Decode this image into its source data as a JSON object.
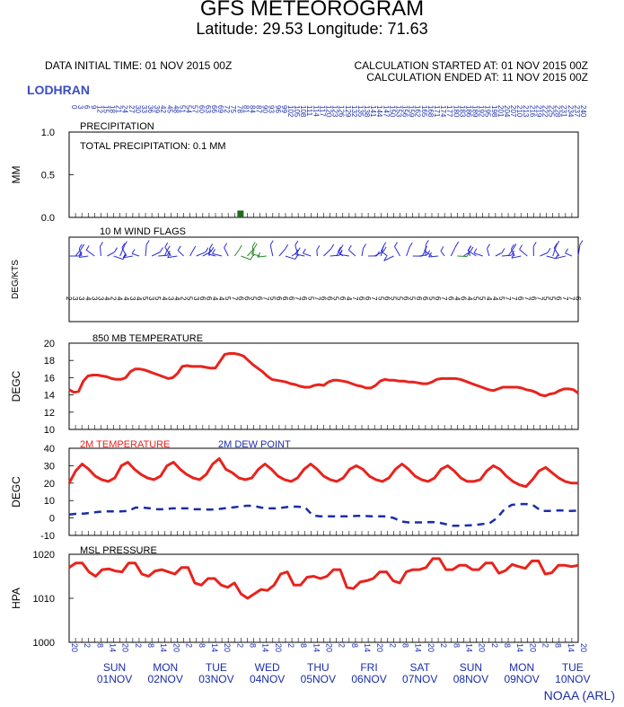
{
  "header": {
    "title": "GFS METEOROGRAM",
    "subtitle": "Latitude: 29.53 Longitude:  71.63",
    "data_initial_time": "DATA INITIAL TIME: 01 NOV 2015 00Z",
    "calc_started": "CALCULATION STARTED AT: 01 NOV 2015 00Z",
    "calc_ended": "CALCULATION ENDED AT: 11 NOV 2015 00Z",
    "site": "LODHRAN",
    "credit": "NOAA (ARL)"
  },
  "colors": {
    "temp": "#e8231d",
    "dew": "#1a2ea8",
    "precip": "#1f6b1f",
    "wind": "#2b2bd6",
    "wind_alt": "#2a8a2a"
  },
  "chart_data": [
    {
      "type": "bar",
      "title": "PRECIPITATION",
      "annotation": "TOTAL PRECIPITATION:   0.1 MM",
      "ylabel": "MM",
      "ylim": [
        0,
        1
      ],
      "yticks": [
        "0.0",
        "0.5",
        "1.0"
      ],
      "bars": [
        {
          "hour": 81,
          "value": 0.08
        }
      ]
    },
    {
      "type": "scatter",
      "title": "10 M  WIND FLAGS",
      "ylabel": "DEG/KTS",
      "speed_kts": [
        2,
        3,
        3,
        4,
        3,
        3,
        4,
        2,
        4,
        4,
        3,
        4,
        5,
        3,
        5,
        4,
        3,
        4,
        2,
        5,
        3,
        6,
        6,
        4,
        4,
        5,
        7,
        6,
        6,
        5,
        6,
        7,
        5,
        6,
        6,
        6,
        7,
        6,
        5,
        7,
        6,
        6,
        5,
        6,
        4,
        7,
        6,
        6,
        7,
        5,
        6,
        5,
        5,
        6,
        5,
        6,
        6,
        5,
        6,
        7,
        6,
        4,
        6,
        4,
        5,
        5,
        4,
        4,
        5,
        7,
        7,
        6,
        7,
        6,
        7,
        5,
        5,
        6,
        7,
        7,
        6
      ]
    },
    {
      "type": "line",
      "title": "850 MB  TEMPERATURE",
      "ylabel": "DEGC",
      "ylim": [
        10,
        20
      ],
      "yticks": [
        "10",
        "12",
        "14",
        "16",
        "18",
        "20"
      ],
      "x_hours_step": 3,
      "series": [
        {
          "values": [
            14.6,
            14.3,
            14.4,
            15.6,
            16.2,
            16.3,
            16.3,
            16.2,
            16.1,
            15.9,
            15.8,
            15.8,
            16.0,
            16.7,
            17.0,
            17.0,
            16.9,
            16.7,
            16.5,
            16.3,
            16.1,
            15.9,
            16.0,
            16.5,
            17.3,
            17.4,
            17.3,
            17.3,
            17.3,
            17.2,
            17.1,
            17.1,
            17.9,
            18.7,
            18.8,
            18.8,
            18.7,
            18.5,
            18.0,
            17.5,
            17.1,
            16.7,
            16.2,
            15.8,
            15.7,
            15.6,
            15.5,
            15.3,
            15.2,
            15.0,
            14.9,
            14.9,
            15.1,
            15.2,
            15.1,
            15.5,
            15.7,
            15.7,
            15.6,
            15.5,
            15.3,
            15.1,
            15.0,
            14.8,
            14.8,
            15.1,
            15.6,
            15.8,
            15.7,
            15.7,
            15.6,
            15.6,
            15.5,
            15.5,
            15.4,
            15.3,
            15.3,
            15.5,
            15.8,
            15.9,
            15.9,
            15.9,
            15.9,
            15.8,
            15.6,
            15.4,
            15.2,
            15.0,
            14.8,
            14.6,
            14.5,
            14.7,
            14.9,
            14.9,
            14.9,
            14.9,
            14.8,
            14.6,
            14.5,
            14.3,
            14.0,
            13.9,
            14.1,
            14.2,
            14.5,
            14.7,
            14.7,
            14.6,
            14.2
          ]
        }
      ]
    },
    {
      "type": "line",
      "title": "2M TEMPERATURE / 2M  DEW POINT",
      "ylabel": "DEGC",
      "ylim": [
        -10,
        40
      ],
      "yticks": [
        "-10",
        "0",
        "10",
        "20",
        "30",
        "40"
      ],
      "x_hours_step": 6,
      "series": [
        {
          "name": "2M TEMPERATURE",
          "values": [
            20,
            27,
            31,
            28,
            24,
            22,
            21,
            23,
            30,
            32,
            28,
            25,
            23,
            22,
            24,
            30,
            32,
            28,
            25,
            23,
            22,
            25,
            31,
            34,
            28,
            26,
            23,
            22,
            23,
            28,
            31,
            28,
            24,
            22,
            21,
            23,
            28,
            31,
            28,
            24,
            22,
            21,
            23,
            28,
            30,
            28,
            24,
            22,
            21,
            23,
            28,
            31,
            28,
            24,
            22,
            21,
            23,
            28,
            30,
            27,
            23,
            21,
            21,
            22,
            27,
            30,
            28,
            24,
            21,
            19,
            18,
            22,
            27,
            29,
            26,
            23,
            21,
            20,
            20
          ]
        },
        {
          "name": "2M  DEW POINT",
          "values": [
            2,
            2.5,
            2.5,
            3,
            3.5,
            3.8,
            3.8,
            3.8,
            4,
            6,
            6,
            5.5,
            5,
            5,
            5.5,
            5.5,
            5.5,
            5,
            5,
            4.8,
            5,
            5.5,
            6,
            6.5,
            7,
            7,
            6,
            5.5,
            5.5,
            6,
            6.5,
            6.5,
            6,
            1.5,
            1,
            1,
            1,
            1,
            1,
            1.2,
            1.2,
            1,
            1,
            1,
            0,
            -2,
            -2.5,
            -2.5,
            -2.5,
            -2.3,
            -2.5,
            -3.5,
            -4.5,
            -4.5,
            -4.3,
            -4,
            -3.5,
            -3,
            0,
            5,
            7.5,
            8,
            8,
            7,
            4,
            4,
            4.3,
            4.3,
            4,
            4.3
          ]
        }
      ]
    },
    {
      "type": "line",
      "title": "MSL PRESSURE",
      "ylabel": "HPA",
      "ylim": [
        1000,
        1020
      ],
      "yticks": [
        "1000",
        "1010",
        "1020"
      ],
      "x_hours_step": 6,
      "series": [
        {
          "values": [
            1017,
            1018,
            1018,
            1016,
            1015,
            1016.5,
            1016.7,
            1016.2,
            1016,
            1018,
            1018,
            1015.5,
            1015,
            1016.2,
            1016.5,
            1016,
            1015.5,
            1017,
            1017,
            1013.5,
            1013,
            1014.5,
            1014.5,
            1013,
            1012.5,
            1013.5,
            1011,
            1010,
            1011,
            1012,
            1011.8,
            1013,
            1015.5,
            1016,
            1013,
            1013,
            1014.8,
            1015,
            1014.5,
            1015,
            1016.5,
            1016.5,
            1012.5,
            1012.2,
            1013.7,
            1014,
            1014.5,
            1016,
            1016,
            1014,
            1013.5,
            1016,
            1016.5,
            1016.5,
            1017,
            1019,
            1019,
            1016.5,
            1016.5,
            1017.5,
            1017.5,
            1016.5,
            1016.5,
            1018,
            1018,
            1015.7,
            1016.3,
            1017.7,
            1017.2,
            1016.8,
            1018.5,
            1018.5,
            1015.5,
            1015.8,
            1017.5,
            1017.5,
            1017.2,
            1017.5
          ]
        }
      ]
    }
  ],
  "x_axis": {
    "hour_labels": [
      "0",
      "3",
      "6",
      "9",
      "12",
      "15",
      "18",
      "21",
      "24",
      "27",
      "30",
      "33",
      "36",
      "39",
      "42",
      "45",
      "48",
      "51",
      "54",
      "57",
      "60",
      "63",
      "66",
      "69",
      "72",
      "75",
      "78",
      "81",
      "84",
      "87",
      "90",
      "93",
      "96",
      "99",
      "102",
      "105",
      "108",
      "111",
      "114",
      "117",
      "120",
      "123",
      "126",
      "129",
      "132",
      "135",
      "138",
      "141",
      "144",
      "147",
      "150",
      "153",
      "156",
      "159",
      "162",
      "165",
      "168",
      "171",
      "174",
      "177",
      "180",
      "183",
      "186",
      "189",
      "192",
      "195",
      "198",
      "201",
      "204",
      "207",
      "210",
      "213",
      "216",
      "219",
      "222",
      "225",
      "228",
      "231",
      "234",
      "237",
      "240"
    ],
    "utc_labels": [
      "20",
      "2",
      "8",
      "14",
      "20",
      "2",
      "8",
      "14",
      "20",
      "2",
      "8",
      "14",
      "20",
      "2",
      "8",
      "14",
      "20",
      "2",
      "8",
      "14",
      "20",
      "2",
      "8",
      "14",
      "20",
      "2",
      "8",
      "14",
      "20",
      "2",
      "8",
      "14",
      "20",
      "2",
      "8",
      "14",
      "20",
      "2",
      "8",
      "14",
      "20"
    ],
    "days": [
      {
        "dow": "SUN",
        "date": "01NOV"
      },
      {
        "dow": "MON",
        "date": "02NOV"
      },
      {
        "dow": "TUE",
        "date": "03NOV"
      },
      {
        "dow": "WED",
        "date": "04NOV"
      },
      {
        "dow": "THU",
        "date": "05NOV"
      },
      {
        "dow": "FRI",
        "date": "06NOV"
      },
      {
        "dow": "SAT",
        "date": "07NOV"
      },
      {
        "dow": "SUN",
        "date": "08NOV"
      },
      {
        "dow": "MON",
        "date": "09NOV"
      },
      {
        "dow": "TUE",
        "date": "10NOV"
      }
    ]
  }
}
